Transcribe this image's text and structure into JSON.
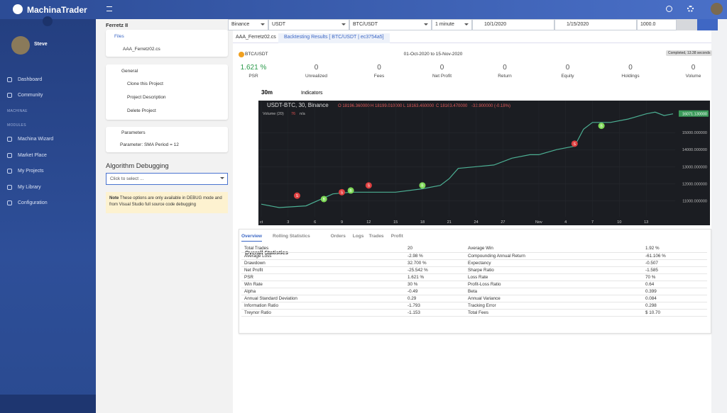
{
  "app": {
    "brand": "MachinaTrader",
    "user": "Steve"
  },
  "nav": {
    "items": [
      "Dashboard",
      "Community"
    ],
    "section1": "MACHINAE",
    "section2": "MODULES",
    "modules": [
      "Machina Wizard",
      "Market Place",
      "My Projects",
      "My Library",
      "Configuration"
    ]
  },
  "project": {
    "title": "Ferretz II",
    "files_label": "Files",
    "file": "AAA_Ferretz02.cs",
    "general_label": "General",
    "general_items": [
      "Clone this Project",
      "Project Description",
      "Delete Project"
    ],
    "parameters_label": "Parameters",
    "parameter": "Parameter: SMA Period = 12",
    "debug_title": "Algorithm Debugging",
    "debug_select": "Click to select ...",
    "note_label": "Note",
    "note_text": "These options are only available in DEBUG mode and from Visual Studio full source code debugging"
  },
  "toolbar": {
    "exchange": "Binance",
    "quote": "USDT",
    "pair": "BTC/USDT",
    "resolution": "1 minute",
    "start": "10/1/2020",
    "end": "1/15/2020",
    "cash": "1000.0"
  },
  "tabs": [
    "AAA_Ferretz02.cs",
    "Backtesting Results [ BTC/USDT | ec3754a5]"
  ],
  "results": {
    "symbol": "BTC/USDT",
    "period": "01-Oct-2020 to 15-Nov-2020",
    "status": "Completed, 13.38 seconds",
    "summary": [
      {
        "value": "1.621 %",
        "label": "PSR"
      },
      {
        "value": "0",
        "label": "Unrealized"
      },
      {
        "value": "0",
        "label": "Fees"
      },
      {
        "value": "0",
        "label": "Net Profit"
      },
      {
        "value": "0",
        "label": "Return"
      },
      {
        "value": "0",
        "label": "Equity"
      },
      {
        "value": "0",
        "label": "Holdings"
      },
      {
        "value": "0",
        "label": "Volume"
      }
    ]
  },
  "chart_data": {
    "type": "line",
    "interval": "30m",
    "indicators": "Indicators",
    "title": "USDT-BTC, 30, Binance",
    "ohlc": [
      "O 18196.360000",
      "H 18199.010000",
      "L 18163.460000",
      "C 18163.470000",
      "-32.900000 (-0.18%)"
    ],
    "volume_label": "Volume (20)",
    "volume_value": "76",
    "volume_na": "n/a",
    "last_price": "16071.130000",
    "x": [
      0,
      2,
      5,
      8,
      10,
      12,
      15,
      18,
      20,
      21,
      22,
      24,
      26,
      28,
      30,
      31,
      33,
      35,
      36,
      37,
      39,
      41,
      43,
      44,
      45,
      46
    ],
    "series": [
      {
        "name": "USDT-BTC",
        "color": "#4caf93",
        "values": [
          10800,
          10600,
          10700,
          11400,
          11500,
          11500,
          11500,
          11700,
          11900,
          12300,
          12900,
          13000,
          13100,
          13500,
          13700,
          13700,
          14000,
          14200,
          15200,
          15600,
          15600,
          15800,
          16100,
          16200,
          16000,
          16100
        ]
      }
    ],
    "trades": [
      {
        "side": "S",
        "day": 4,
        "price": 11300
      },
      {
        "side": "B",
        "day": 7,
        "price": 11100
      },
      {
        "side": "S",
        "day": 9,
        "price": 11500
      },
      {
        "side": "B",
        "day": 10,
        "price": 11600
      },
      {
        "side": "S",
        "day": 12,
        "price": 11900
      },
      {
        "side": "B",
        "day": 18,
        "price": 11900
      },
      {
        "side": "S",
        "day": 35,
        "price": 14350
      },
      {
        "side": "B",
        "day": 38,
        "price": 15400
      }
    ],
    "xlim": [
      0,
      46
    ],
    "ylim": [
      10100,
      16630
    ],
    "xticks": [
      {
        "value": 0,
        "label": "ct"
      },
      3,
      6,
      9,
      12,
      15,
      18,
      21,
      24,
      27,
      {
        "value": 31,
        "label": "Nov"
      },
      {
        "value": 34,
        "label": "4"
      },
      {
        "value": 37,
        "label": "7"
      },
      {
        "value": 40,
        "label": "10"
      },
      {
        "value": 43,
        "label": "13"
      }
    ],
    "yticks": [
      {
        "value": 11000,
        "label": "11000.000000"
      },
      {
        "value": 12000,
        "label": "12000.000000"
      },
      {
        "value": 13000,
        "label": "13000.000000"
      },
      {
        "value": 14000,
        "label": "14000.000000"
      },
      {
        "value": 15000,
        "label": "15000.000000"
      }
    ]
  },
  "stats": {
    "tabs": [
      "Overview",
      "Rolling Statistics",
      "Orders",
      "Logs",
      "Trades",
      "Profit"
    ],
    "title": "Overall Statistics",
    "rows": [
      [
        "Total Trades",
        "20",
        "Average Win",
        "1.92 %"
      ],
      [
        "Average Loss",
        "-2.98 %",
        "Compounding Annual Return",
        "-61.106 %"
      ],
      [
        "Drawdown",
        "32.700 %",
        "Expectancy",
        "-0.507"
      ],
      [
        "Net Profit",
        "-25.542 %",
        "Sharpe Ratio",
        "-1.585"
      ],
      [
        "PSR",
        "1.621 %",
        "Loss Rate",
        "70 %"
      ],
      [
        "Win Rate",
        "30 %",
        "Profit-Loss Ratio",
        "0.64"
      ],
      [
        "Alpha",
        "-0.49",
        "Beta",
        "0.399"
      ],
      [
        "Annual Standard Deviation",
        "0.29",
        "Annual Variance",
        "0.084"
      ],
      [
        "Information Ratio",
        "-1.793",
        "Tracking Error",
        "0.298"
      ],
      [
        "Treynor Ratio",
        "-1.153",
        "Total Fees",
        "$ 10.70"
      ]
    ]
  }
}
